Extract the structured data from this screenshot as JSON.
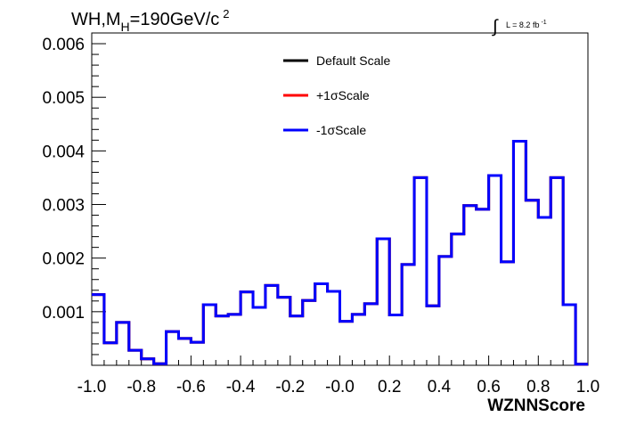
{
  "chart_data": {
    "type": "step",
    "title_parts": {
      "main": "WH,M",
      "sub": "H",
      "rest": "=190GeV/c",
      "sup": "2"
    },
    "lumi": {
      "integral_symbol": "∫",
      "text": "L = 8.2 fb",
      "sup": "-1"
    },
    "xlabel": "WZNNScore",
    "xlim": [
      -1.0,
      1.0
    ],
    "ylim": [
      0,
      0.0062
    ],
    "x_ticks": [
      -1.0,
      -0.8,
      -0.6,
      -0.4,
      -0.2,
      0.0,
      0.2,
      0.4,
      0.6,
      0.8,
      1.0
    ],
    "x_tick_labels": [
      "-1.0",
      "-0.8",
      "-0.6",
      "-0.4",
      "-0.2",
      "-0.0",
      "0.2",
      "0.4",
      "0.6",
      "0.8",
      "1.0"
    ],
    "y_ticks": [
      0.001,
      0.002,
      0.003,
      0.004,
      0.005,
      0.006
    ],
    "y_tick_labels": [
      "0.001",
      "0.002",
      "0.003",
      "0.004",
      "0.005",
      "0.006"
    ],
    "bin_edges": [
      -1.0,
      -0.95,
      -0.9,
      -0.85,
      -0.8,
      -0.75,
      -0.7,
      -0.65,
      -0.6,
      -0.55,
      -0.5,
      -0.45,
      -0.4,
      -0.35,
      -0.3,
      -0.25,
      -0.2,
      -0.15,
      -0.1,
      -0.05,
      0.0,
      0.05,
      0.1,
      0.15,
      0.2,
      0.25,
      0.3,
      0.35,
      0.4,
      0.45,
      0.5,
      0.55,
      0.6,
      0.65,
      0.7,
      0.75,
      0.8,
      0.85,
      0.9,
      0.95,
      1.0
    ],
    "series": [
      {
        "name": "Default Scale",
        "color": "#000000",
        "values": [
          0.00132,
          0.00042,
          0.0008,
          0.00028,
          0.00012,
          3e-05,
          0.00063,
          0.0005,
          0.00043,
          0.00113,
          0.00092,
          0.00095,
          0.00137,
          0.00108,
          0.00149,
          0.00127,
          0.00092,
          0.00121,
          0.00152,
          0.00138,
          0.00082,
          0.00095,
          0.00115,
          0.00236,
          0.00094,
          0.00188,
          0.0035,
          0.00111,
          0.00203,
          0.00245,
          0.00298,
          0.00291,
          0.00354,
          0.00193,
          0.00418,
          0.00308,
          0.00276,
          0.0035,
          0.00113,
          2e-05
        ]
      },
      {
        "name": "+1σScale",
        "color": "#ff0000",
        "values": [
          0.00132,
          0.00042,
          0.0008,
          0.00028,
          0.00012,
          3e-05,
          0.00063,
          0.0005,
          0.00043,
          0.00113,
          0.00092,
          0.00095,
          0.00137,
          0.00108,
          0.00149,
          0.00127,
          0.00092,
          0.00121,
          0.00152,
          0.00138,
          0.00082,
          0.00095,
          0.00115,
          0.00236,
          0.00094,
          0.00188,
          0.0035,
          0.00111,
          0.00203,
          0.00245,
          0.00298,
          0.00291,
          0.00354,
          0.00193,
          0.00418,
          0.00308,
          0.00276,
          0.0035,
          0.00113,
          2e-05
        ]
      },
      {
        "name": "-1σScale",
        "color": "#0000ff",
        "values": [
          0.00132,
          0.00042,
          0.0008,
          0.00028,
          0.00012,
          3e-05,
          0.00063,
          0.0005,
          0.00043,
          0.00113,
          0.00092,
          0.00095,
          0.00137,
          0.00108,
          0.00149,
          0.00127,
          0.00092,
          0.00121,
          0.00152,
          0.00138,
          0.00082,
          0.00095,
          0.00115,
          0.00236,
          0.00094,
          0.00188,
          0.0035,
          0.00111,
          0.00203,
          0.00245,
          0.00298,
          0.00291,
          0.00354,
          0.00193,
          0.00418,
          0.00308,
          0.00276,
          0.0035,
          0.00113,
          2e-05
        ]
      }
    ],
    "legend_position": "top-center",
    "grid": false
  }
}
